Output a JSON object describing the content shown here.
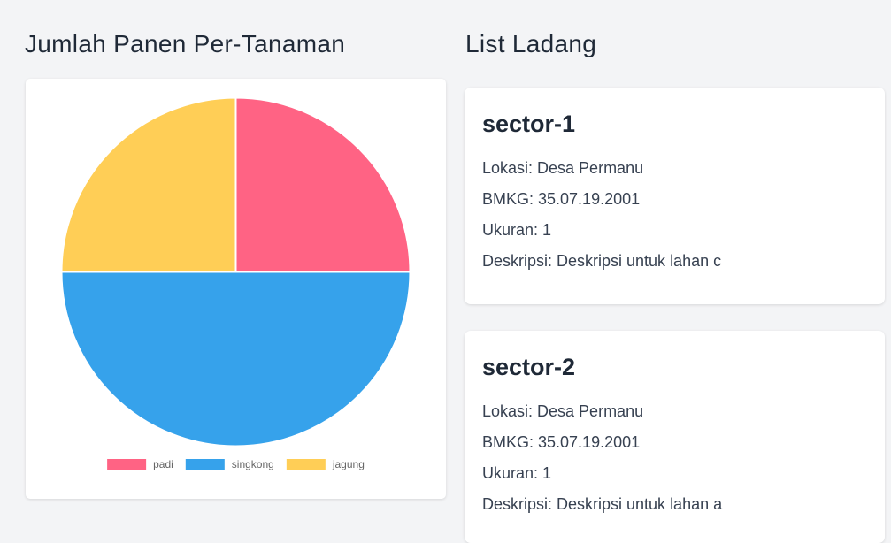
{
  "chart_section": {
    "title": "Jumlah Panen Per-Tanaman"
  },
  "list_section": {
    "title": "List Ladang"
  },
  "chart_data": {
    "type": "pie",
    "title": "",
    "labels": [
      "padi",
      "singkong",
      "jagung"
    ],
    "values": [
      1,
      2,
      1
    ],
    "colors": [
      "#ff6384",
      "#36a2eb",
      "#ffce56"
    ],
    "legend": "bottom"
  },
  "sectors": [
    {
      "name": "sector-1",
      "lokasi": "Lokasi: Desa Permanu",
      "bmkg": "BMKG: 35.07.19.2001",
      "ukuran": "Ukuran: 1",
      "deskripsi": "Deskripsi: Deskripsi untuk lahan c"
    },
    {
      "name": "sector-2",
      "lokasi": "Lokasi: Desa Permanu",
      "bmkg": "BMKG: 35.07.19.2001",
      "ukuran": "Ukuran: 1",
      "deskripsi": "Deskripsi: Deskripsi untuk lahan a"
    }
  ]
}
